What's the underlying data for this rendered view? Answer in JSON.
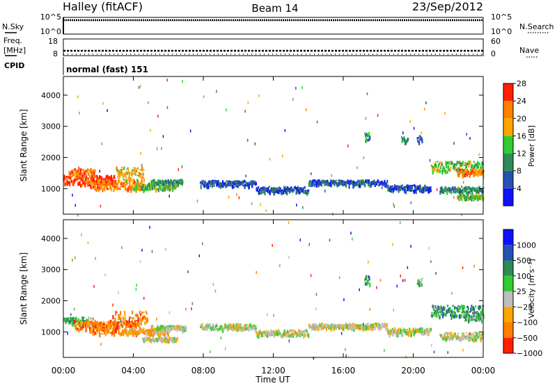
{
  "header": {
    "station": "Halley (fitACF)",
    "beam": "Beam 14",
    "date": "23/Sep/2012"
  },
  "noise_panel": {
    "left_label": "N.Sky",
    "right_label": "N.Search",
    "ticks_left": [
      "10^5",
      "10^0"
    ],
    "ticks_right": [
      "10^5",
      "10^0"
    ]
  },
  "freq_panel": {
    "left_label_line1": "Freq.",
    "left_label_line2": "[MHz]",
    "right_label": "Nave",
    "ticks_left": [
      "18",
      "8"
    ],
    "ticks_right": [
      "60",
      "0"
    ]
  },
  "cpid": {
    "label": "CPID",
    "value": "normal (fast) 151"
  },
  "colorbars": {
    "power": {
      "label": "Power [dB]",
      "ticks": [
        "4",
        "8",
        "12",
        "16",
        "20",
        "24",
        "28"
      ],
      "colors": [
        "#1010ff",
        "#2850b0",
        "#2e8b57",
        "#32cd32",
        "#ffa500",
        "#ff7f00",
        "#ff2000"
      ]
    },
    "velocity": {
      "label": "Velocity [m s⁻¹]",
      "ticks": [
        "1000",
        "500",
        "100",
        "25",
        "−25",
        "−100",
        "−500",
        "−1000"
      ],
      "colors": [
        "#1010ff",
        "#2850b0",
        "#2e8b57",
        "#32cd32",
        "#bebebe",
        "#ffa500",
        "#ff7f00",
        "#ff2000"
      ]
    }
  },
  "chart_data": [
    {
      "type": "heatmap",
      "name": "power",
      "ylabel": "Slant Range [km]",
      "ylim": [
        180,
        4600
      ],
      "yticks": [
        1000,
        2000,
        3000,
        4000
      ],
      "xlim": [
        0,
        24
      ],
      "blobs": [
        {
          "t0": 0.0,
          "t1": 3.0,
          "r": 1300,
          "w": 180,
          "level": 6
        },
        {
          "t0": 0.3,
          "t1": 1.8,
          "r": 1550,
          "w": 150,
          "level": 5
        },
        {
          "t0": 1.5,
          "t1": 4.5,
          "r": 1150,
          "w": 200,
          "level": 5
        },
        {
          "t0": 3.0,
          "t1": 4.6,
          "r": 1500,
          "w": 280,
          "level": 4
        },
        {
          "t0": 4.0,
          "t1": 6.5,
          "r": 1100,
          "w": 130,
          "level": 3
        },
        {
          "t0": 5.0,
          "t1": 6.8,
          "r": 1250,
          "w": 80,
          "level": 2
        },
        {
          "t0": 7.8,
          "t1": 11.0,
          "r": 1200,
          "w": 110,
          "level": 1
        },
        {
          "t0": 11.0,
          "t1": 14.0,
          "r": 1000,
          "w": 110,
          "level": 1
        },
        {
          "t0": 14.0,
          "t1": 18.5,
          "r": 1220,
          "w": 100,
          "level": 1
        },
        {
          "t0": 18.5,
          "t1": 21.0,
          "r": 1050,
          "w": 120,
          "level": 1
        },
        {
          "t0": 21.0,
          "t1": 24.0,
          "r": 1750,
          "w": 200,
          "level": 3
        },
        {
          "t0": 22.5,
          "t1": 24.0,
          "r": 1550,
          "w": 120,
          "level": 5
        },
        {
          "t0": 21.5,
          "t1": 24.0,
          "r": 1000,
          "w": 110,
          "level": 2
        },
        {
          "t0": 22.5,
          "t1": 24.0,
          "r": 770,
          "w": 80,
          "level": 3
        },
        {
          "t0": 17.2,
          "t1": 17.5,
          "r": 2700,
          "w": 150,
          "level": 2
        },
        {
          "t0": 19.3,
          "t1": 19.7,
          "r": 2600,
          "w": 120,
          "level": 2
        },
        {
          "t0": 20.2,
          "t1": 20.5,
          "r": 2650,
          "w": 150,
          "level": 1
        }
      ]
    },
    {
      "type": "heatmap",
      "name": "velocity",
      "ylabel": "Slant Range [km]",
      "xlabel": "Time UT",
      "ylim": [
        180,
        4600
      ],
      "yticks": [
        1000,
        2000,
        3000,
        4000
      ],
      "xlim": [
        0,
        24
      ],
      "xticks": [
        "00:00",
        "04:00",
        "08:00",
        "12:00",
        "16:00",
        "20:00",
        "00:00"
      ],
      "blobs": [
        {
          "t0": 0.0,
          "t1": 1.6,
          "r": 1400,
          "w": 120,
          "level": 3
        },
        {
          "t0": 0.6,
          "t1": 3.0,
          "r": 1250,
          "w": 180,
          "level": 6
        },
        {
          "t0": 1.5,
          "t1": 4.3,
          "r": 1150,
          "w": 250,
          "level": 6
        },
        {
          "t0": 2.8,
          "t1": 4.8,
          "r": 1450,
          "w": 300,
          "level": 6
        },
        {
          "t0": 3.5,
          "t1": 6.0,
          "r": 1050,
          "w": 130,
          "level": 5
        },
        {
          "t0": 5.0,
          "t1": 7.0,
          "r": 1150,
          "w": 100,
          "level": 4
        },
        {
          "t0": 4.5,
          "t1": 6.5,
          "r": 800,
          "w": 60,
          "level": 4
        },
        {
          "t0": 7.8,
          "t1": 11.0,
          "r": 1200,
          "w": 110,
          "level": 4
        },
        {
          "t0": 11.0,
          "t1": 14.0,
          "r": 1000,
          "w": 110,
          "level": 4
        },
        {
          "t0": 14.0,
          "t1": 18.5,
          "r": 1220,
          "w": 100,
          "level": 4
        },
        {
          "t0": 18.5,
          "t1": 21.0,
          "r": 1050,
          "w": 120,
          "level": 4
        },
        {
          "t0": 21.0,
          "t1": 24.0,
          "r": 1700,
          "w": 220,
          "level": 2
        },
        {
          "t0": 22.8,
          "t1": 24.0,
          "r": 1500,
          "w": 140,
          "level": 3
        },
        {
          "t0": 21.5,
          "t1": 24.0,
          "r": 900,
          "w": 130,
          "level": 4
        },
        {
          "t0": 17.2,
          "t1": 17.5,
          "r": 2700,
          "w": 150,
          "level": 2
        },
        {
          "t0": 20.2,
          "t1": 20.5,
          "r": 2650,
          "w": 150,
          "level": 3
        }
      ]
    }
  ]
}
